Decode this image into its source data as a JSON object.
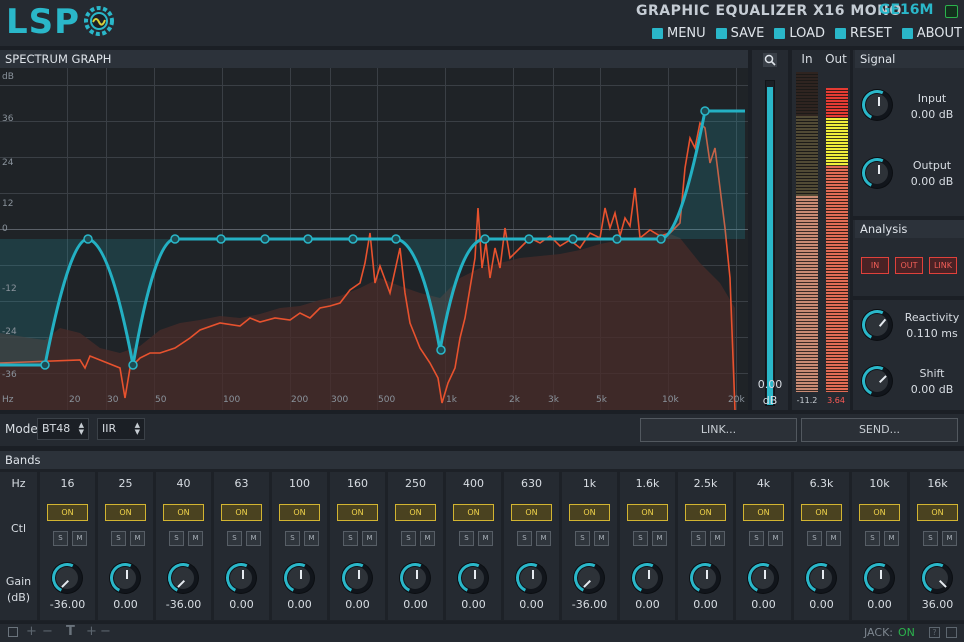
{
  "header": {
    "logo": "LSP",
    "title": "GRAPHIC EQUALIZER X16 MONO",
    "code": "GE16M",
    "menu": [
      {
        "label": "MENU",
        "icon": "menu-icon"
      },
      {
        "label": "SAVE",
        "icon": "save-icon"
      },
      {
        "label": "LOAD",
        "icon": "load-icon"
      },
      {
        "label": "RESET",
        "icon": "reset-icon"
      },
      {
        "label": "ABOUT",
        "icon": "about-icon"
      }
    ]
  },
  "graph": {
    "title": "SPECTRUM GRAPH",
    "y_unit": "dB",
    "x_unit": "Hz",
    "db_ticks": [
      "36",
      "24",
      "12",
      "0",
      "-12",
      "-24",
      "-36"
    ],
    "hz_ticks": [
      "20",
      "30",
      "50",
      "100",
      "200",
      "300",
      "500",
      "1k",
      "2k",
      "3k",
      "5k",
      "10k",
      "20k"
    ]
  },
  "zoom": {
    "value": "0.00",
    "unit": "dB",
    "level": 0.98
  },
  "meters": {
    "in_label": "In",
    "out_label": "Out",
    "in_value": "-11.2",
    "out_value": "3.64"
  },
  "signal": {
    "title": "Signal",
    "input_label": "Input",
    "input_value": "0.00 dB",
    "output_label": "Output",
    "output_value": "0.00 dB"
  },
  "analysis": {
    "title": "Analysis",
    "in_label": "IN",
    "out_label": "OUT",
    "link_label": "LINK",
    "reactivity_label": "Reactivity",
    "reactivity_value": "0.110 ms",
    "shift_label": "Shift",
    "shift_value": "0.00 dB"
  },
  "mode": {
    "label": "Mode",
    "slope": "BT48",
    "filter": "IIR",
    "link_button": "LINK...",
    "send_button": "SEND..."
  },
  "bands": {
    "title": "Bands",
    "hz_label": "Hz",
    "ctl_label": "Ctl",
    "gain_label": "Gain",
    "gain_unit": "(dB)",
    "on_label": "ON",
    "solo_label": "S",
    "mute_label": "M",
    "items": [
      {
        "hz": "16",
        "gain": "-36.00"
      },
      {
        "hz": "25",
        "gain": "0.00"
      },
      {
        "hz": "40",
        "gain": "-36.00"
      },
      {
        "hz": "63",
        "gain": "0.00"
      },
      {
        "hz": "100",
        "gain": "0.00"
      },
      {
        "hz": "160",
        "gain": "0.00"
      },
      {
        "hz": "250",
        "gain": "0.00"
      },
      {
        "hz": "400",
        "gain": "0.00"
      },
      {
        "hz": "630",
        "gain": "0.00"
      },
      {
        "hz": "1k",
        "gain": "-36.00"
      },
      {
        "hz": "1.6k",
        "gain": "0.00"
      },
      {
        "hz": "2.5k",
        "gain": "0.00"
      },
      {
        "hz": "4k",
        "gain": "0.00"
      },
      {
        "hz": "6.3k",
        "gain": "0.00"
      },
      {
        "hz": "10k",
        "gain": "0.00"
      },
      {
        "hz": "16k",
        "gain": "36.00"
      }
    ]
  },
  "footer": {
    "jack_label": "JACK:",
    "jack_status": "ON"
  },
  "colors": {
    "accent": "#2ab7c9",
    "on_yellow": "#d2b431",
    "analysis_red": "#e0413b",
    "spectrum_orange": "#e8522e"
  }
}
